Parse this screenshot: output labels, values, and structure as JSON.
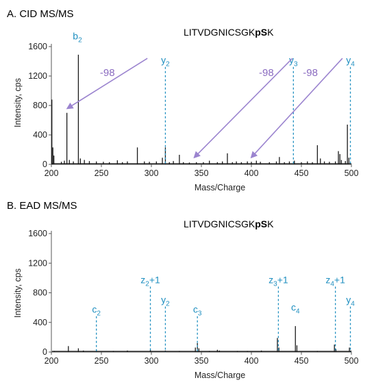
{
  "chart_data": [
    {
      "type": "bar",
      "panel_title": "A. CID MS/MS",
      "sequence": {
        "prefix": "LITVDGNICSGK",
        "bold": "pS",
        "suffix": "K"
      },
      "xlabel": "Mass/Charge",
      "ylabel": "Intensity, cps",
      "xlim": [
        200,
        500
      ],
      "ylim": [
        0,
        1600
      ],
      "xticks": [
        "200",
        "250",
        "300",
        "350",
        "400",
        "450",
        "500"
      ],
      "yticks": [
        "0",
        "400",
        "800",
        "1200",
        "1600"
      ],
      "peaks": [
        {
          "x": 200.5,
          "y": 880
        },
        {
          "x": 201.5,
          "y": 230
        },
        {
          "x": 202.5,
          "y": 120
        },
        {
          "x": 210,
          "y": 35
        },
        {
          "x": 213,
          "y": 50
        },
        {
          "x": 215.5,
          "y": 700
        },
        {
          "x": 218,
          "y": 60
        },
        {
          "x": 222,
          "y": 40
        },
        {
          "x": 227,
          "y": 1490
        },
        {
          "x": 229,
          "y": 80
        },
        {
          "x": 233,
          "y": 60
        },
        {
          "x": 238,
          "y": 45
        },
        {
          "x": 245,
          "y": 40
        },
        {
          "x": 252,
          "y": 35
        },
        {
          "x": 258,
          "y": 30
        },
        {
          "x": 266,
          "y": 55
        },
        {
          "x": 271,
          "y": 30
        },
        {
          "x": 276,
          "y": 40
        },
        {
          "x": 286,
          "y": 230
        },
        {
          "x": 293,
          "y": 40
        },
        {
          "x": 298,
          "y": 35
        },
        {
          "x": 305,
          "y": 40
        },
        {
          "x": 311,
          "y": 90
        },
        {
          "x": 314,
          "y": 230
        },
        {
          "x": 318,
          "y": 30
        },
        {
          "x": 322,
          "y": 45
        },
        {
          "x": 328,
          "y": 130
        },
        {
          "x": 332,
          "y": 30
        },
        {
          "x": 338,
          "y": 25
        },
        {
          "x": 345,
          "y": 30
        },
        {
          "x": 352,
          "y": 30
        },
        {
          "x": 358,
          "y": 50
        },
        {
          "x": 366,
          "y": 30
        },
        {
          "x": 371,
          "y": 40
        },
        {
          "x": 376,
          "y": 150
        },
        {
          "x": 381,
          "y": 30
        },
        {
          "x": 385,
          "y": 40
        },
        {
          "x": 390,
          "y": 30
        },
        {
          "x": 396,
          "y": 40
        },
        {
          "x": 400,
          "y": 35
        },
        {
          "x": 405,
          "y": 50
        },
        {
          "x": 409,
          "y": 35
        },
        {
          "x": 418,
          "y": 30
        },
        {
          "x": 425,
          "y": 40
        },
        {
          "x": 428,
          "y": 100
        },
        {
          "x": 433,
          "y": 30
        },
        {
          "x": 438,
          "y": 40
        },
        {
          "x": 443,
          "y": 50
        },
        {
          "x": 450,
          "y": 30
        },
        {
          "x": 456,
          "y": 40
        },
        {
          "x": 461,
          "y": 30
        },
        {
          "x": 466,
          "y": 260
        },
        {
          "x": 469,
          "y": 80
        },
        {
          "x": 473,
          "y": 40
        },
        {
          "x": 478,
          "y": 35
        },
        {
          "x": 484,
          "y": 40
        },
        {
          "x": 487,
          "y": 180
        },
        {
          "x": 488.5,
          "y": 140
        },
        {
          "x": 490,
          "y": 60
        },
        {
          "x": 494,
          "y": 45
        },
        {
          "x": 496,
          "y": 540
        },
        {
          "x": 497.5,
          "y": 90
        }
      ],
      "ion_labels": [
        {
          "base": "b",
          "sub": "2",
          "suffix": "",
          "x": 226,
          "label_y": 1700,
          "dashed": false
        },
        {
          "base": "y",
          "sub": "2",
          "suffix": "",
          "x": 314,
          "label_y": 1370,
          "dashed": true
        },
        {
          "base": "y",
          "sub": "3",
          "suffix": "",
          "x": 442,
          "label_y": 1370,
          "dashed": true
        },
        {
          "base": "y",
          "sub": "4",
          "suffix": "",
          "x": 499,
          "label_y": 1370,
          "dashed": true
        }
      ],
      "neutral_losses": [
        {
          "label": "-98",
          "label_x": 256,
          "label_y": 1200,
          "from": [
            296,
            1440
          ],
          "to": [
            216,
            760
          ]
        },
        {
          "label": "-98",
          "label_x": 415,
          "label_y": 1200,
          "from": [
            441,
            1440
          ],
          "to": [
            343,
            95
          ]
        },
        {
          "label": "-98",
          "label_x": 459,
          "label_y": 1200,
          "from": [
            491,
            1440
          ],
          "to": [
            400,
            95
          ]
        }
      ],
      "colors": {
        "peak": "#1a1a1a",
        "ion": "#1f8fc0",
        "arrow": "#9b84cf",
        "shift_label": "#8a6bc0"
      }
    },
    {
      "type": "bar",
      "panel_title": "B. EAD MS/MS",
      "sequence": {
        "prefix": "LITVDGNICSGK",
        "bold": "pS",
        "suffix": "K"
      },
      "xlabel": "Mass/Charge",
      "ylabel": "Intensity, cps",
      "xlim": [
        200,
        500
      ],
      "ylim": [
        0,
        1600
      ],
      "xticks": [
        "200",
        "250",
        "300",
        "350",
        "400",
        "450",
        "500"
      ],
      "yticks": [
        "0",
        "400",
        "800",
        "1200",
        "1600"
      ],
      "peaks": [
        {
          "x": 203,
          "y": 15
        },
        {
          "x": 217,
          "y": 80
        },
        {
          "x": 227,
          "y": 50
        },
        {
          "x": 232,
          "y": 20
        },
        {
          "x": 245,
          "y": 25
        },
        {
          "x": 262,
          "y": 15
        },
        {
          "x": 276,
          "y": 20
        },
        {
          "x": 299,
          "y": 30
        },
        {
          "x": 314,
          "y": 20
        },
        {
          "x": 328,
          "y": 15
        },
        {
          "x": 344,
          "y": 60
        },
        {
          "x": 346,
          "y": 120
        },
        {
          "x": 347.5,
          "y": 50
        },
        {
          "x": 358,
          "y": 15
        },
        {
          "x": 366,
          "y": 30
        },
        {
          "x": 368,
          "y": 20
        },
        {
          "x": 386,
          "y": 15
        },
        {
          "x": 396,
          "y": 15
        },
        {
          "x": 410,
          "y": 20
        },
        {
          "x": 426,
          "y": 190
        },
        {
          "x": 427.5,
          "y": 60
        },
        {
          "x": 444,
          "y": 350
        },
        {
          "x": 445.5,
          "y": 90
        },
        {
          "x": 466,
          "y": 15
        },
        {
          "x": 483,
          "y": 100
        },
        {
          "x": 484.5,
          "y": 40
        },
        {
          "x": 498,
          "y": 60
        },
        {
          "x": 499.5,
          "y": 20
        }
      ],
      "ion_labels": [
        {
          "base": "c",
          "sub": "2",
          "suffix": "",
          "x": 245,
          "label_y": 530,
          "dashed": true
        },
        {
          "base": "z",
          "sub": "2",
          "suffix": "+1",
          "x": 299,
          "label_y": 930,
          "dashed": true
        },
        {
          "base": "y",
          "sub": "2",
          "suffix": "",
          "x": 314,
          "label_y": 660,
          "dashed": true
        },
        {
          "base": "c",
          "sub": "3",
          "suffix": "",
          "x": 346,
          "label_y": 530,
          "dashed": true
        },
        {
          "base": "z",
          "sub": "3",
          "suffix": "+1",
          "x": 427,
          "label_y": 930,
          "dashed": true
        },
        {
          "base": "c",
          "sub": "4",
          "suffix": "",
          "x": 444,
          "label_y": 560,
          "dashed": false
        },
        {
          "base": "z",
          "sub": "4",
          "suffix": "+1",
          "x": 484,
          "label_y": 930,
          "dashed": true
        },
        {
          "base": "y",
          "sub": "4",
          "suffix": "",
          "x": 499,
          "label_y": 660,
          "dashed": true
        }
      ],
      "neutral_losses": [],
      "colors": {
        "peak": "#1a1a1a",
        "ion": "#1f8fc0",
        "arrow": "#9b84cf",
        "shift_label": "#8a6bc0"
      }
    }
  ]
}
